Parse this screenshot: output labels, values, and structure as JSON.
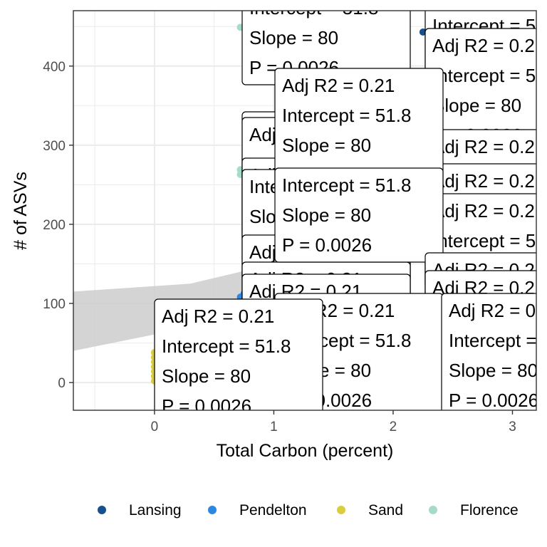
{
  "chart_data": {
    "type": "scatter",
    "title": "",
    "xlabel": "Total Carbon (percent)",
    "ylabel": "# of ASVs",
    "xlim": [
      -0.68,
      3.2
    ],
    "ylim": [
      -35,
      470
    ],
    "x_ticks": [
      0,
      1,
      2,
      3
    ],
    "y_ticks": [
      0,
      100,
      200,
      300,
      400
    ],
    "grid": true,
    "legend_position": "bottom",
    "series": [
      {
        "name": "Lansing",
        "color": "#17508f",
        "points": [
          [
            2.25,
            443
          ],
          [
            2.3,
            440
          ],
          [
            2.35,
            446
          ]
        ]
      },
      {
        "name": "Pendelton",
        "color": "#2c87e0",
        "points": [
          [
            0.72,
            108
          ],
          [
            0.75,
            112
          ],
          [
            0.78,
            104
          ],
          [
            0.8,
            110
          ]
        ]
      },
      {
        "name": "Sand",
        "color": "#dbce3c",
        "points": [
          [
            0,
            2
          ],
          [
            0,
            8
          ],
          [
            0,
            14
          ],
          [
            0,
            20
          ],
          [
            0,
            26
          ],
          [
            0,
            32
          ],
          [
            0,
            38
          ],
          [
            0.01,
            5
          ],
          [
            0.01,
            17
          ],
          [
            0.01,
            29
          ]
        ]
      },
      {
        "name": "Florence",
        "color": "#a4dcc5",
        "points": [
          [
            0.72,
            449
          ],
          [
            0.72,
            263
          ],
          [
            0.72,
            269
          ]
        ]
      }
    ],
    "ribbon": [
      [
        -0.68,
        115
      ],
      [
        0.3,
        125
      ],
      [
        0.72,
        140
      ],
      [
        0.9,
        155
      ],
      [
        1.0,
        162
      ],
      [
        1.3,
        185
      ],
      [
        1.5,
        210
      ],
      [
        1.5,
        150
      ],
      [
        1.3,
        140
      ],
      [
        1.0,
        118
      ],
      [
        0.72,
        96
      ],
      [
        0.3,
        70
      ],
      [
        -0.68,
        40
      ]
    ],
    "annotations": {
      "lines": [
        "Adj R2 =  0.21",
        "Intercept = 51.8",
        "Slope = 80",
        "P = 0.0026"
      ]
    }
  }
}
